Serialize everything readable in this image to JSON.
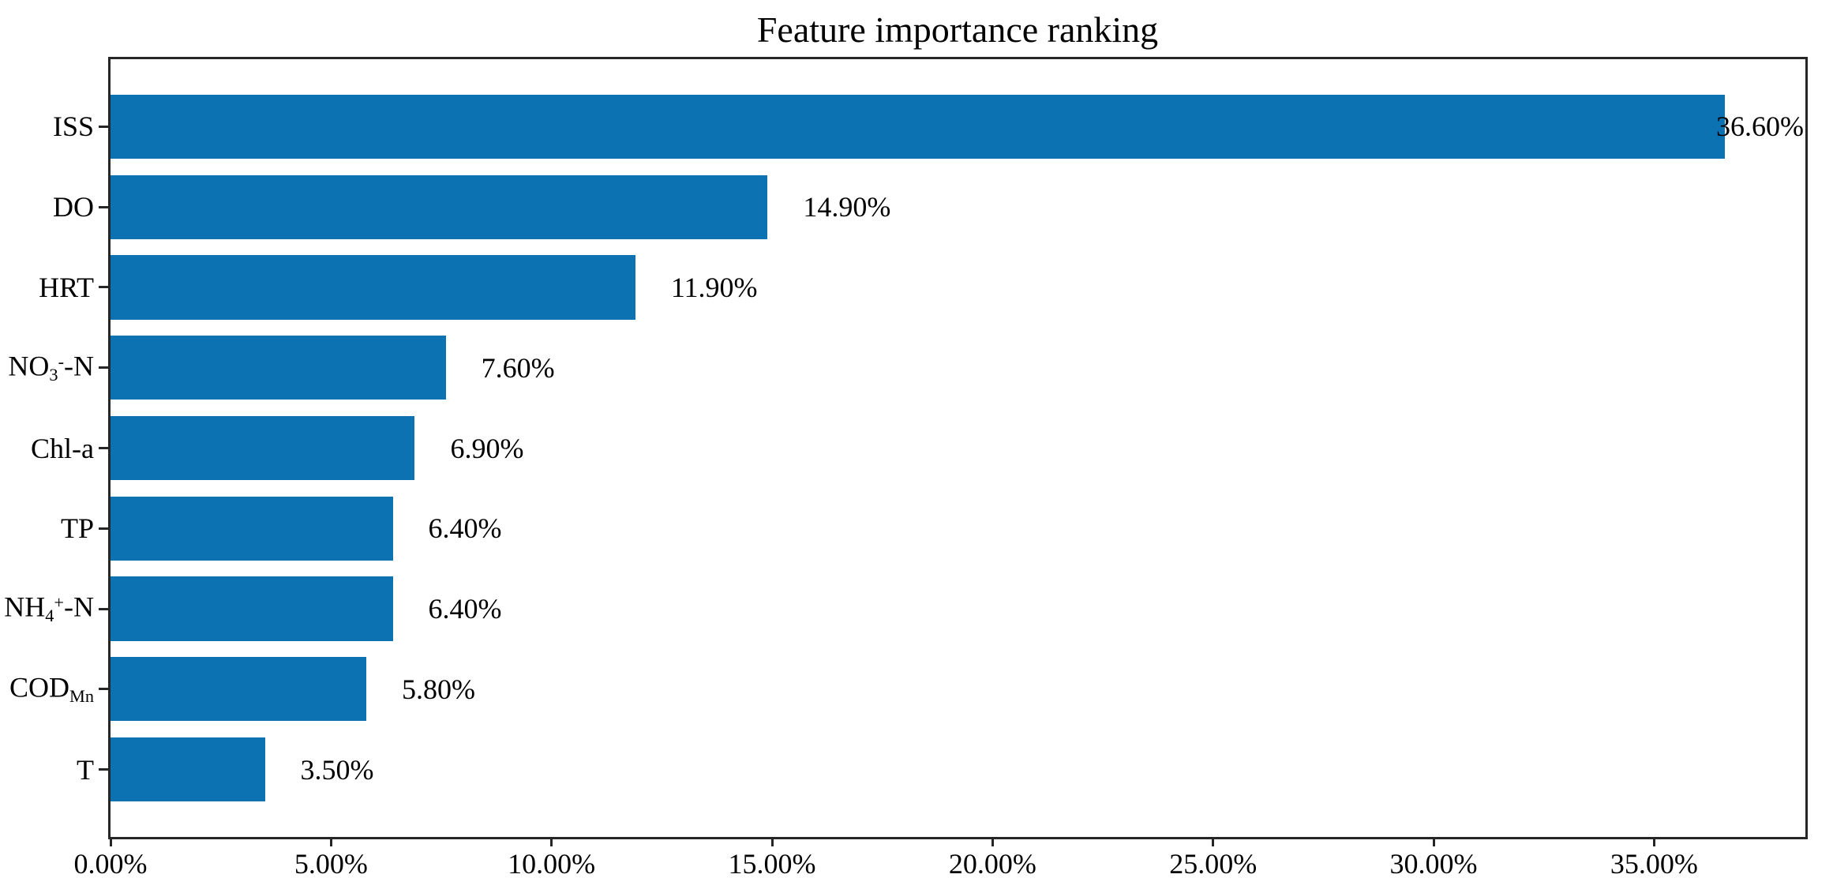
{
  "title": "Feature importance ranking",
  "chart_data": {
    "type": "bar",
    "orientation": "horizontal",
    "title": "Feature importance ranking",
    "categories": [
      "ISS",
      "DO",
      "HRT",
      "NO3--N",
      "Chl-a",
      "TP",
      "NH4+-N",
      "CODMn",
      "T"
    ],
    "label_parts": [
      [
        {
          "t": "ISS"
        }
      ],
      [
        {
          "t": "DO"
        }
      ],
      [
        {
          "t": "HRT"
        }
      ],
      [
        {
          "t": "NO"
        },
        {
          "t": "3",
          "s": "sub"
        },
        {
          "t": "-",
          "s": "sup"
        },
        {
          "t": "-N"
        }
      ],
      [
        {
          "t": "Chl-a"
        }
      ],
      [
        {
          "t": "TP"
        }
      ],
      [
        {
          "t": "NH"
        },
        {
          "t": "4",
          "s": "sub"
        },
        {
          "t": "+",
          "s": "sup"
        },
        {
          "t": "-N"
        }
      ],
      [
        {
          "t": "COD"
        },
        {
          "t": "Mn",
          "s": "sub"
        }
      ],
      [
        {
          "t": "T"
        }
      ]
    ],
    "values": [
      36.6,
      14.9,
      11.9,
      7.6,
      6.9,
      6.4,
      6.4,
      5.8,
      3.5
    ],
    "value_labels": [
      "36.60%",
      "14.90%",
      "11.90%",
      "7.60%",
      "6.90%",
      "6.40%",
      "6.40%",
      "5.80%",
      "3.50%"
    ],
    "x_tick_values": [
      0,
      5,
      10,
      15,
      20,
      25,
      30,
      35
    ],
    "x_tick_labels": [
      "0.00%",
      "5.00%",
      "10.00%",
      "15.00%",
      "20.00%",
      "25.00%",
      "30.00%",
      "35.00%"
    ],
    "xlabel": "",
    "ylabel": "",
    "xlim": [
      0,
      38.43
    ],
    "ylim": [
      -0.84,
      8.84
    ],
    "bar_thickness_units": 0.8,
    "grid": false,
    "legend": false,
    "bar_color": "#0c72b2",
    "axis_color": "#262626",
    "background_color": "#ffffff"
  }
}
